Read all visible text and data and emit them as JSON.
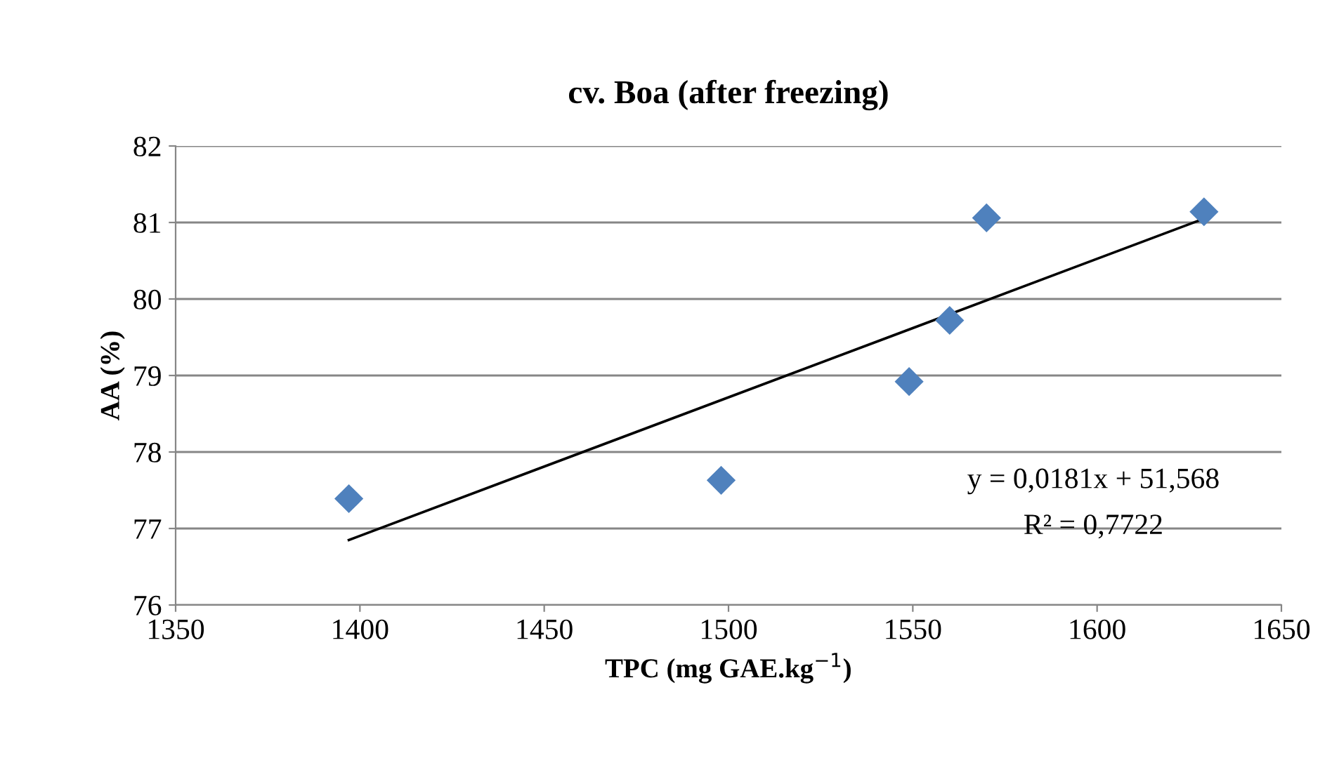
{
  "chart_data": {
    "type": "scatter",
    "title": "cv. Boa (after freezing)",
    "xlabel": "TPC (mg GAE.kg$^{−1}$)",
    "ylabel": "AA (%)",
    "series": [
      {
        "color": "#4f81bd",
        "marker": "diamond",
        "x": [
          1397,
          1498,
          1549,
          1560,
          1570,
          1629
        ],
        "values": [
          77.39,
          77.63,
          78.92,
          79.72,
          81.06,
          81.14
        ]
      },
      {
        "type": "line",
        "color": "#000000",
        "line_style": "solid",
        "x": [
          1397,
          1629
        ],
        "values": [
          76.85,
          81.05
        ]
      }
    ],
    "annotations": [
      "y = 0,0181x + 51,568",
      "R² = 0,7722"
    ],
    "xlim": [
      1350,
      1650
    ],
    "xticks": [
      1350,
      1400,
      1450,
      1500,
      1550,
      1600,
      1650
    ],
    "ylim": [
      76,
      82
    ],
    "yticks": [
      76,
      77,
      78,
      79,
      80,
      81,
      82
    ],
    "grid": "y",
    "legend": false
  }
}
